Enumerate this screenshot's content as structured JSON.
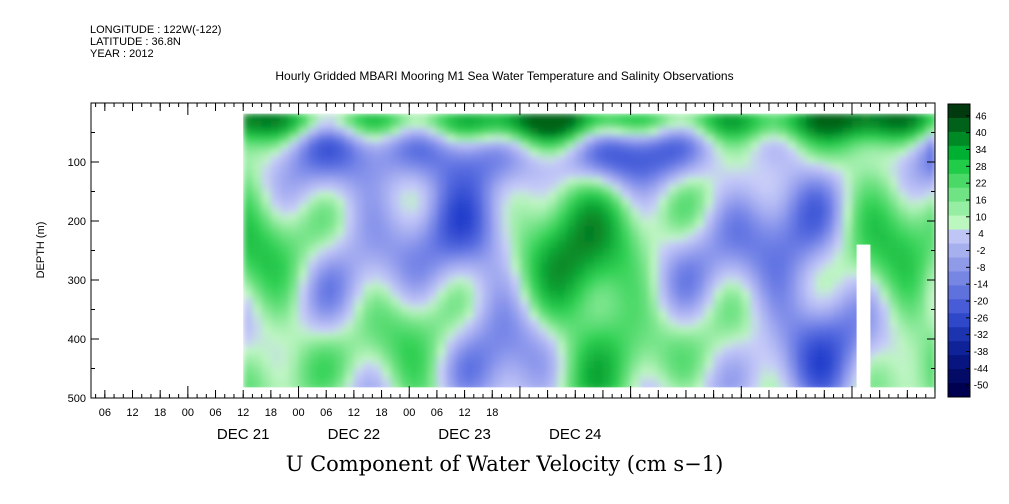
{
  "header": {
    "longitude": "LONGITUDE : 122W(-122)",
    "latitude": "LATITUDE : 36.8N",
    "year": "YEAR : 2012"
  },
  "chart_data": {
    "type": "heatmap",
    "title": "Hourly Gridded MBARI Mooring M1 Sea Water Temperature and Salinity Observations",
    "main_title": "U Component of Water Velocity (cm s−1)",
    "ylabel": "DEPTH (m)",
    "ylim": [
      500,
      0
    ],
    "yticks": [
      100,
      200,
      300,
      400,
      500
    ],
    "x_range_hours": [
      -21,
      162
    ],
    "x_tick_labels": [
      "06",
      "12",
      "18",
      "00",
      "06",
      "12",
      "18",
      "00",
      "06",
      "12",
      "18",
      "00",
      "06",
      "12",
      "18"
    ],
    "x_day_labels": [
      "DEC 21",
      "DEC 22",
      "DEC 23",
      "DEC 24"
    ],
    "colorbar_labels": [
      "46",
      "40",
      "34",
      "28",
      "22",
      "16",
      "10",
      "4",
      "-2",
      "-8",
      "-14",
      "-20",
      "-26",
      "-32",
      "-38",
      "-44",
      "-50"
    ],
    "colorbar_colors": [
      "#003a0e",
      "#00621a",
      "#008a26",
      "#00b032",
      "#20cc48",
      "#4ad866",
      "#70e484",
      "#96eea2",
      "#bcf7c0",
      "#bfc5f5",
      "#a7b0ef",
      "#8f9be9",
      "#7786e3",
      "#5f71dd",
      "#475cd6",
      "#2f47c9",
      "#1d34b0",
      "#102298",
      "#081580",
      "#030b66",
      "#000050"
    ],
    "data_time_range_hours": [
      12,
      162
    ],
    "data_depth_range_m": [
      18,
      482
    ],
    "missing_column_hours": [
      145,
      148
    ],
    "missing_column_top_depth_m": 240
  }
}
